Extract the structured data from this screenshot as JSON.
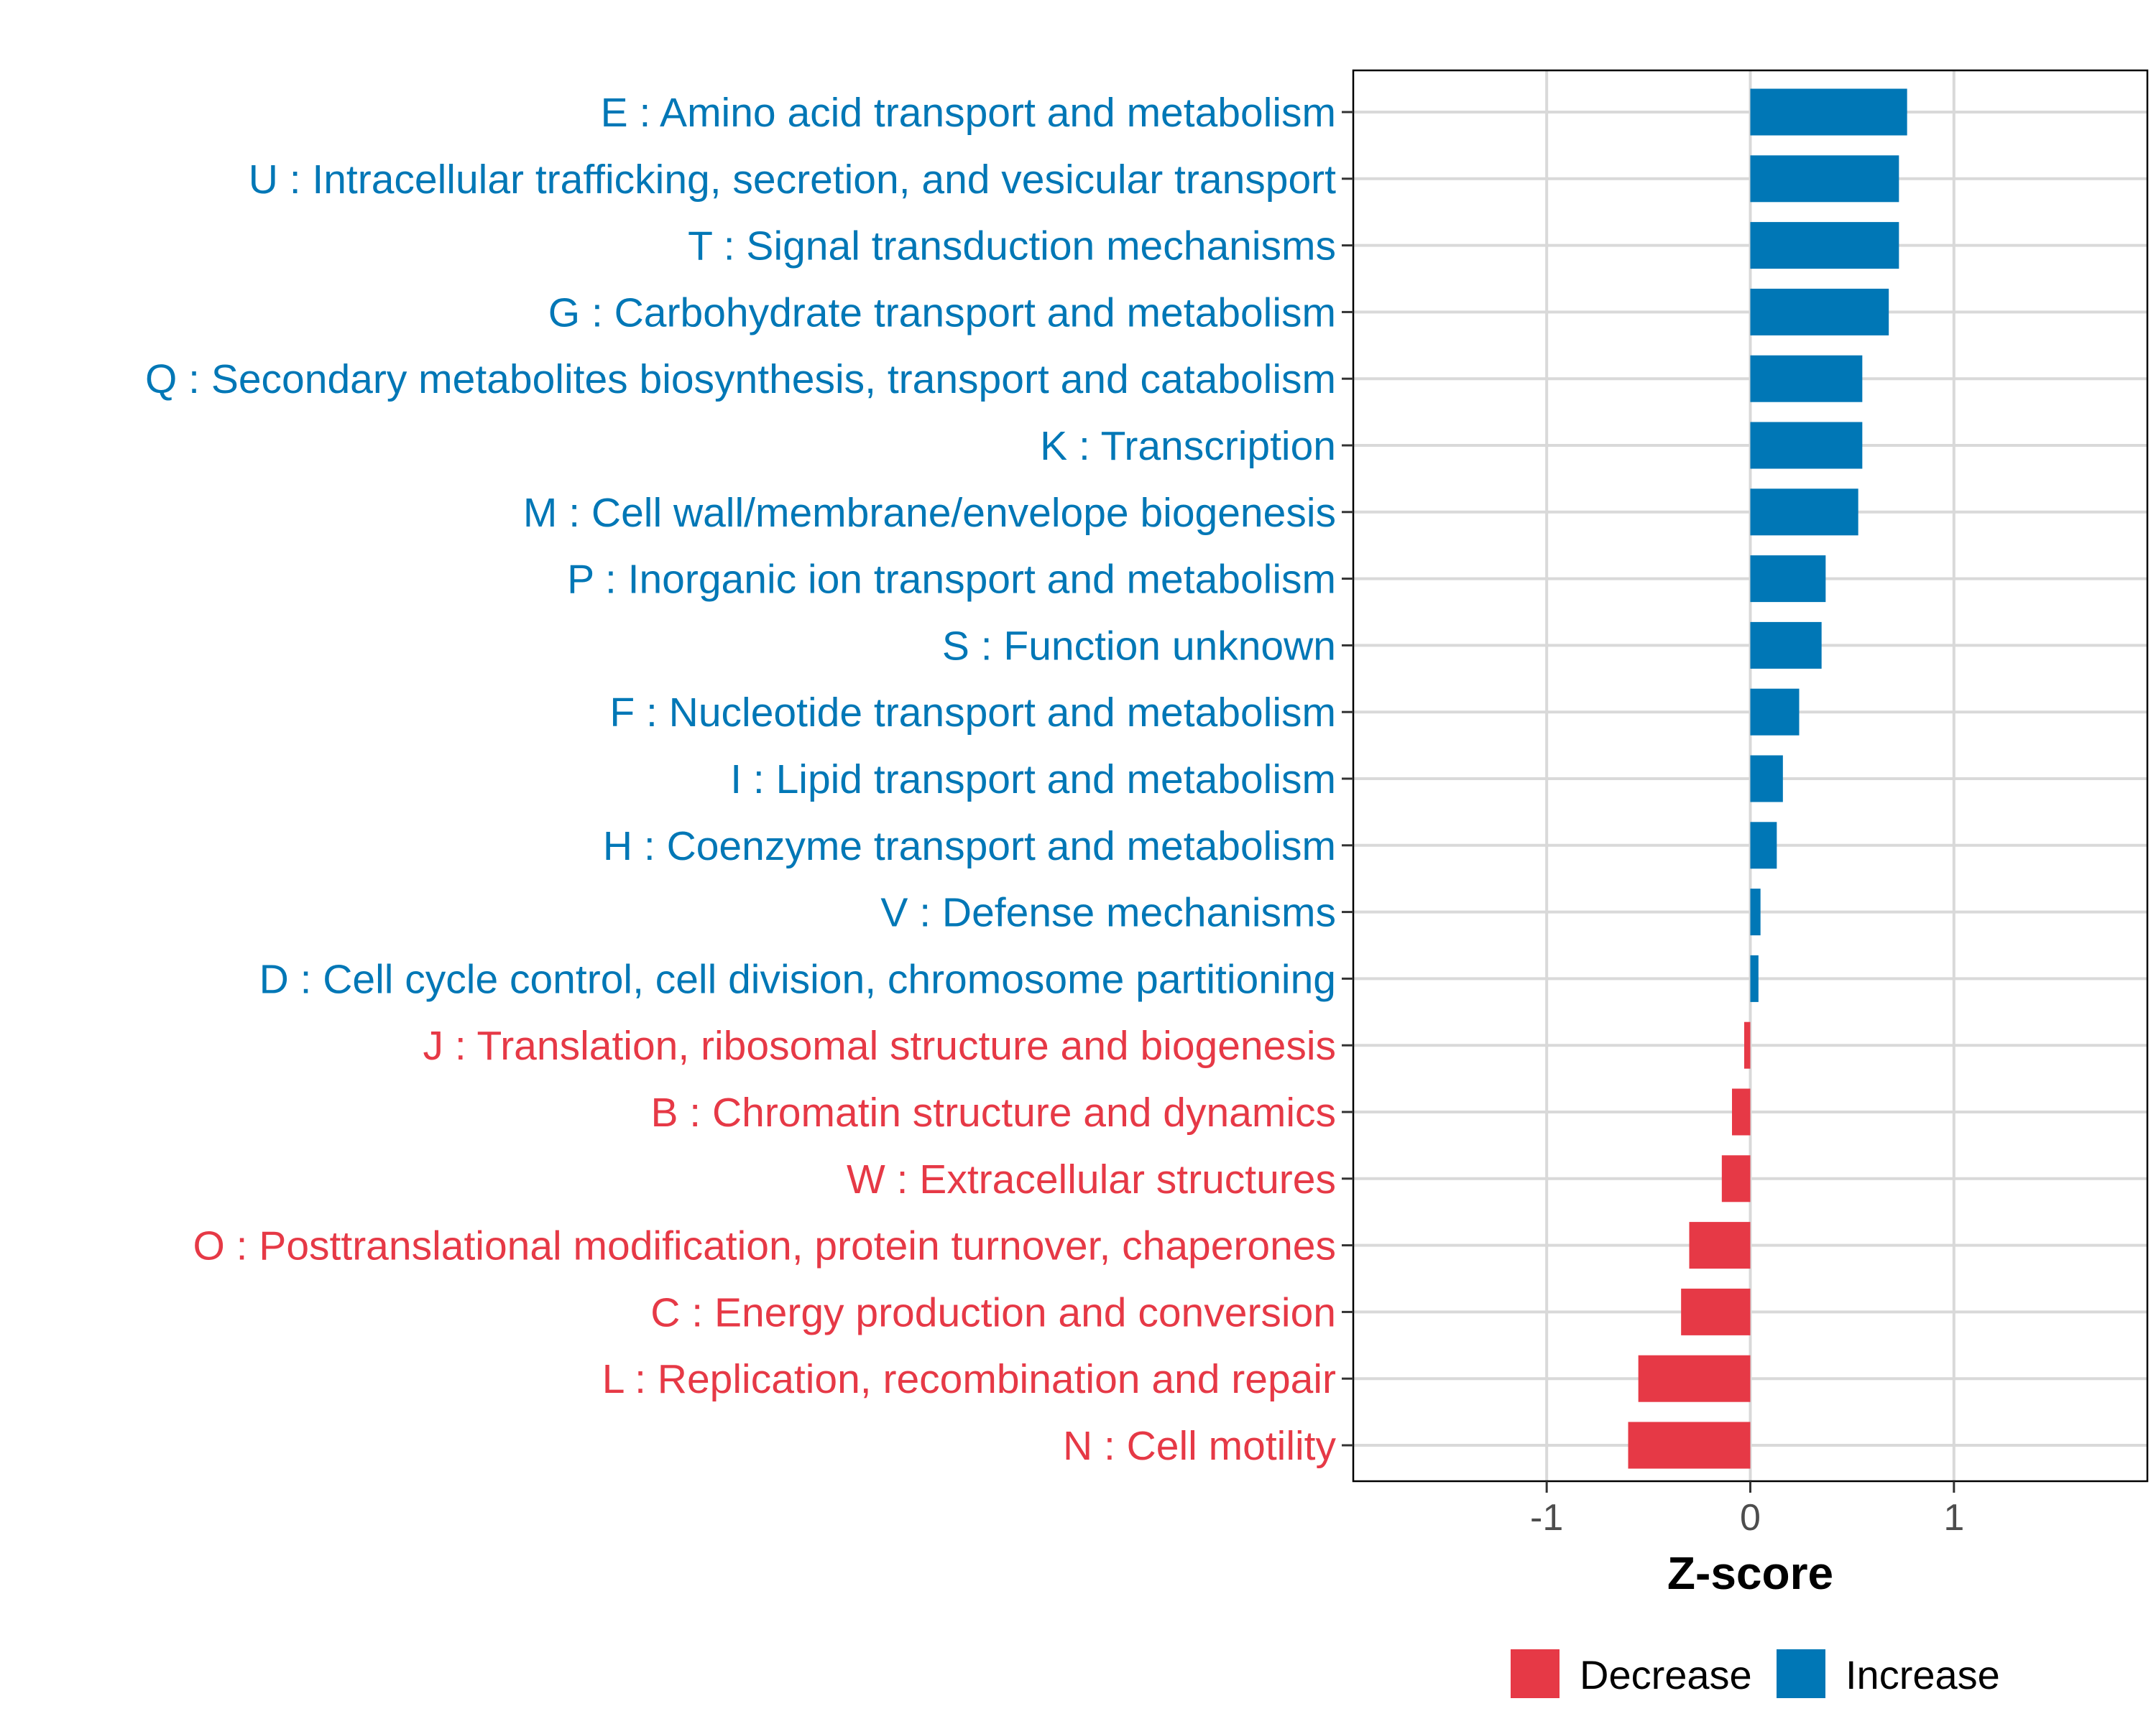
{
  "chart_data": {
    "type": "bar",
    "orientation": "horizontal",
    "title": "",
    "xlabel": "Z-score",
    "ylabel": "",
    "xlim": [
      -1.95,
      1.95
    ],
    "xticks": [
      -1,
      0,
      1
    ],
    "xtick_labels": [
      "-1",
      "0",
      "1"
    ],
    "grid": true,
    "legend_position": "bottom",
    "legend": [
      {
        "key": "decrease",
        "label": "Decrease",
        "color": "#e63946"
      },
      {
        "key": "increase",
        "label": "Increase",
        "color": "#0077b6"
      }
    ],
    "colors": {
      "decrease": "#e63946",
      "increase": "#0077b6"
    },
    "categories": [
      {
        "label": "E : Amino acid transport and metabolism",
        "value": 0.77,
        "group": "increase"
      },
      {
        "label": "U : Intracellular trafficking, secretion, and vesicular transport",
        "value": 0.73,
        "group": "increase"
      },
      {
        "label": "T : Signal transduction mechanisms",
        "value": 0.73,
        "group": "increase"
      },
      {
        "label": "G : Carbohydrate transport and metabolism",
        "value": 0.68,
        "group": "increase"
      },
      {
        "label": "Q : Secondary metabolites biosynthesis, transport and catabolism",
        "value": 0.55,
        "group": "increase"
      },
      {
        "label": "K : Transcription",
        "value": 0.55,
        "group": "increase"
      },
      {
        "label": "M : Cell wall/membrane/envelope biogenesis",
        "value": 0.53,
        "group": "increase"
      },
      {
        "label": "P : Inorganic ion transport and metabolism",
        "value": 0.37,
        "group": "increase"
      },
      {
        "label": "S : Function unknown",
        "value": 0.35,
        "group": "increase"
      },
      {
        "label": "F : Nucleotide transport and metabolism",
        "value": 0.24,
        "group": "increase"
      },
      {
        "label": "I : Lipid transport and metabolism",
        "value": 0.16,
        "group": "increase"
      },
      {
        "label": "H : Coenzyme transport and metabolism",
        "value": 0.13,
        "group": "increase"
      },
      {
        "label": "V : Defense mechanisms",
        "value": 0.05,
        "group": "increase"
      },
      {
        "label": "D : Cell cycle control, cell division, chromosome partitioning",
        "value": 0.04,
        "group": "increase"
      },
      {
        "label": "J : Translation, ribosomal structure and biogenesis",
        "value": -0.03,
        "group": "decrease"
      },
      {
        "label": "B : Chromatin structure and dynamics",
        "value": -0.09,
        "group": "decrease"
      },
      {
        "label": "W : Extracellular structures",
        "value": -0.14,
        "group": "decrease"
      },
      {
        "label": "O : Posttranslational modification, protein turnover, chaperones",
        "value": -0.3,
        "group": "decrease"
      },
      {
        "label": "C : Energy production and conversion",
        "value": -0.34,
        "group": "decrease"
      },
      {
        "label": "L : Replication, recombination and repair",
        "value": -0.55,
        "group": "decrease"
      },
      {
        "label": "N : Cell motility",
        "value": -0.6,
        "group": "decrease"
      }
    ]
  }
}
